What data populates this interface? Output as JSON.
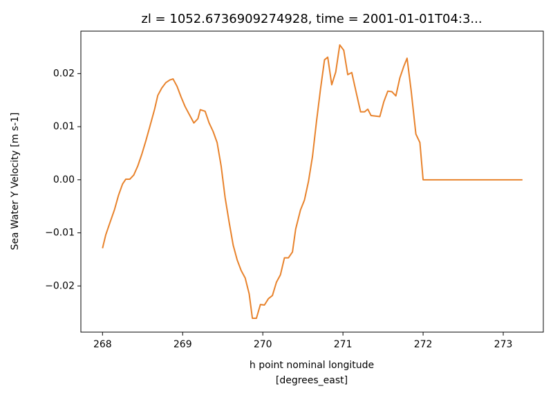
{
  "chart_data": {
    "type": "line",
    "title": "zl = 1052.6736909274928, time = 2001-01-01T04:3...",
    "xlabel": [
      "h point nominal longitude",
      "[degrees_east]"
    ],
    "ylabel": "Sea Water Y Velocity [m s-1]",
    "color": "#e8822b",
    "xlim": [
      267.73,
      273.5
    ],
    "ylim": [
      -0.0287,
      0.028
    ],
    "xticks": [
      268,
      269,
      270,
      271,
      272,
      273
    ],
    "yticks": [
      {
        "value": -0.02,
        "label": "−0.02"
      },
      {
        "value": -0.01,
        "label": "−0.01"
      },
      {
        "value": 0,
        "label": "0.00"
      },
      {
        "value": 0.01,
        "label": "0.01"
      },
      {
        "value": 0.02,
        "label": "0.02"
      }
    ],
    "x": [
      268.0,
      268.04,
      268.09,
      268.15,
      268.2,
      268.25,
      268.29,
      268.34,
      268.39,
      268.44,
      268.49,
      268.54,
      268.59,
      268.65,
      268.69,
      268.74,
      268.79,
      268.84,
      268.88,
      268.93,
      268.98,
      269.03,
      269.09,
      269.14,
      269.19,
      269.22,
      269.28,
      269.33,
      269.38,
      269.43,
      269.48,
      269.53,
      269.58,
      269.63,
      269.68,
      269.73,
      269.78,
      269.83,
      269.87,
      269.92,
      269.97,
      270.02,
      270.07,
      270.12,
      270.17,
      270.22,
      270.27,
      270.32,
      270.37,
      270.41,
      270.47,
      270.52,
      270.57,
      270.62,
      270.67,
      270.72,
      270.77,
      270.81,
      270.86,
      270.91,
      270.96,
      271.01,
      271.06,
      271.11,
      271.16,
      271.22,
      271.27,
      271.31,
      271.35,
      271.46,
      271.51,
      271.56,
      271.61,
      271.66,
      271.71,
      271.76,
      271.8,
      271.85,
      271.91,
      271.96,
      272.0,
      273.24
    ],
    "values": [
      -0.0129,
      -0.0104,
      -0.0082,
      -0.0056,
      -0.0029,
      -0.0008,
      0.0001,
      0.0001,
      0.0009,
      0.0026,
      0.0048,
      0.0073,
      0.01,
      0.0133,
      0.0159,
      0.0173,
      0.0183,
      0.0188,
      0.019,
      0.0176,
      0.0156,
      0.0138,
      0.0121,
      0.0107,
      0.0115,
      0.0132,
      0.0129,
      0.0107,
      0.0091,
      0.007,
      0.0026,
      -0.0034,
      -0.008,
      -0.0123,
      -0.0151,
      -0.0171,
      -0.0185,
      -0.0215,
      -0.0261,
      -0.0261,
      -0.0235,
      -0.0236,
      -0.0224,
      -0.0218,
      -0.0193,
      -0.0179,
      -0.0147,
      -0.0147,
      -0.0136,
      -0.0093,
      -0.0057,
      -0.0038,
      -0.0003,
      0.0044,
      0.011,
      0.0171,
      0.0226,
      0.0231,
      0.0179,
      0.0203,
      0.0254,
      0.0244,
      0.0198,
      0.0202,
      0.0168,
      0.0128,
      0.0128,
      0.0133,
      0.0121,
      0.0119,
      0.0147,
      0.0167,
      0.0166,
      0.0158,
      0.0192,
      0.0214,
      0.0229,
      0.0169,
      0.0086,
      0.007,
      0.0,
      0.0
    ]
  }
}
